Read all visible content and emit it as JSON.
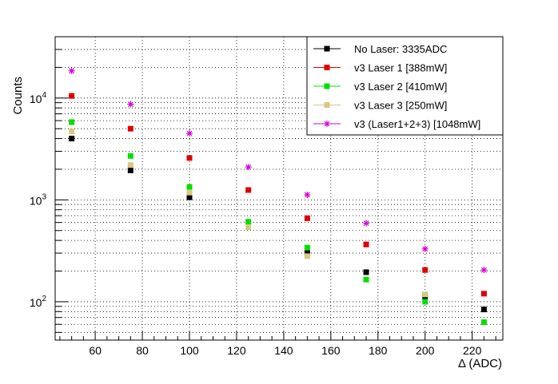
{
  "chart_data": {
    "type": "scatter",
    "xlabel": "Δ (ADC)",
    "ylabel": "Counts",
    "x_range": [
      43,
      233
    ],
    "y_range": [
      42,
      40000
    ],
    "y_scale": "log",
    "grid": true,
    "legend_position": "top-right",
    "x_ticks": [
      60,
      80,
      100,
      120,
      140,
      160,
      180,
      200,
      220
    ],
    "x_tick_labels": [
      "60",
      "80",
      "100",
      "120",
      "140",
      "160",
      "180",
      "200",
      "220"
    ],
    "y_major_ticks": [
      {
        "value": 100,
        "base": "10",
        "exp": "2"
      },
      {
        "value": 1000,
        "base": "10",
        "exp": "3"
      },
      {
        "value": 10000,
        "base": "10",
        "exp": "4"
      }
    ],
    "x": [
      50,
      75,
      100,
      125,
      150,
      175,
      200,
      225
    ],
    "series": [
      {
        "name": "No Laser: 3335ADC",
        "color": "#000000",
        "marker": "square",
        "values": [
          4000,
          1950,
          1060,
          null,
          300,
          195,
          112,
          84
        ]
      },
      {
        "name": "v3 Laser 1 [388mW]",
        "color": "#e00000",
        "marker": "square",
        "values": [
          10500,
          5000,
          2580,
          1250,
          660,
          365,
          205,
          120
        ]
      },
      {
        "name": "v3 Laser 2 [410mW]",
        "color": "#00e000",
        "marker": "square",
        "values": [
          5800,
          2700,
          1340,
          610,
          340,
          165,
          100,
          63
        ]
      },
      {
        "name": "v3 Laser 3 [250mW]",
        "color": "#d8c880",
        "marker": "square",
        "values": [
          4700,
          2200,
          1180,
          540,
          280,
          null,
          118,
          null
        ]
      },
      {
        "name": "v3 (Laser1+2+3) [1048mW]",
        "color": "#d400d4",
        "marker": "star",
        "values": [
          18500,
          8700,
          4500,
          2100,
          1120,
          590,
          330,
          205
        ]
      }
    ]
  }
}
